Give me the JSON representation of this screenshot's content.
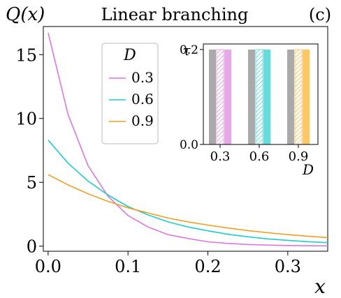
{
  "chart_data": [
    {
      "type": "line",
      "title": "Linear branching",
      "panel_label": "(c)",
      "ylabel": "Q(x)",
      "xlabel": "x",
      "xlim": [
        -0.006,
        0.35
      ],
      "ylim": [
        -0.4,
        17.2
      ],
      "x_ticks": [
        0.0,
        0.1,
        0.2,
        0.3
      ],
      "x_tick_labels": [
        "0.0",
        "0.1",
        "0.2",
        "0.3"
      ],
      "y_ticks": [
        0,
        5,
        10,
        15
      ],
      "y_tick_labels": [
        "0",
        "5",
        "10",
        "15"
      ],
      "grid": false,
      "legend": {
        "title": "D",
        "placement": "upper-left"
      },
      "x": [
        0.0,
        0.025,
        0.05,
        0.075,
        0.1,
        0.125,
        0.15,
        0.175,
        0.2,
        0.225,
        0.25,
        0.275,
        0.3,
        0.325,
        0.35
      ],
      "series": [
        {
          "name": "0.3",
          "color": "#dd77dd",
          "values": [
            16.7,
            10.3,
            6.3,
            3.9,
            2.4,
            1.5,
            0.9,
            0.6,
            0.34,
            0.21,
            0.13,
            0.08,
            0.05,
            0.03,
            0.02
          ]
        },
        {
          "name": "0.6",
          "color": "#22cccc",
          "values": [
            8.3,
            6.5,
            5.1,
            4.0,
            3.1,
            2.45,
            1.9,
            1.5,
            1.2,
            0.93,
            0.73,
            0.57,
            0.45,
            0.35,
            0.27
          ]
        },
        {
          "name": "0.9",
          "color": "#f0a020",
          "values": [
            5.6,
            4.8,
            4.1,
            3.5,
            3.0,
            2.6,
            2.2,
            1.9,
            1.65,
            1.42,
            1.22,
            1.05,
            0.9,
            0.78,
            0.67
          ]
        }
      ]
    },
    {
      "type": "bar",
      "ylabel": "τ",
      "xlabel": "D",
      "categories": [
        "0.3",
        "0.6",
        "0.9"
      ],
      "ylim": [
        0,
        0.2
      ],
      "y_ticks": [
        0.0,
        0.2
      ],
      "y_tick_labels": [
        "0.0",
        "0.2"
      ],
      "bars_per_category": [
        "solid-gray",
        "hatched",
        "solid-color"
      ],
      "gray_color": "#aaaaaa",
      "values": [
        [
          0.2,
          0.2,
          0.2
        ],
        [
          0.2,
          0.2,
          0.2
        ],
        [
          0.2,
          0.2,
          0.2
        ]
      ],
      "category_colors": [
        "#e6a8e6",
        "#66dddd",
        "#ffc766"
      ]
    }
  ]
}
